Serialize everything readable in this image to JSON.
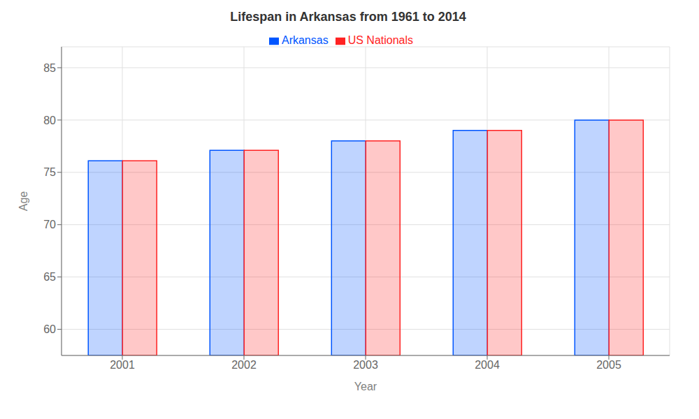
{
  "chart_data": {
    "type": "bar",
    "title": "Lifespan in Arkansas from 1961 to 2014",
    "xlabel": "Year",
    "ylabel": "Age",
    "categories": [
      "2001",
      "2002",
      "2003",
      "2004",
      "2005"
    ],
    "series": [
      {
        "name": "Arkansas",
        "color": "#0055ff",
        "values": [
          76.1,
          77.1,
          78.0,
          79.0,
          80.0
        ]
      },
      {
        "name": "US Nationals",
        "color": "#ff2222",
        "values": [
          76.1,
          77.1,
          78.0,
          79.0,
          80.0
        ]
      }
    ],
    "ylim": [
      57.5,
      87
    ],
    "yticks": [
      60,
      65,
      70,
      75,
      80,
      85
    ],
    "grid": true,
    "legend": "top"
  }
}
